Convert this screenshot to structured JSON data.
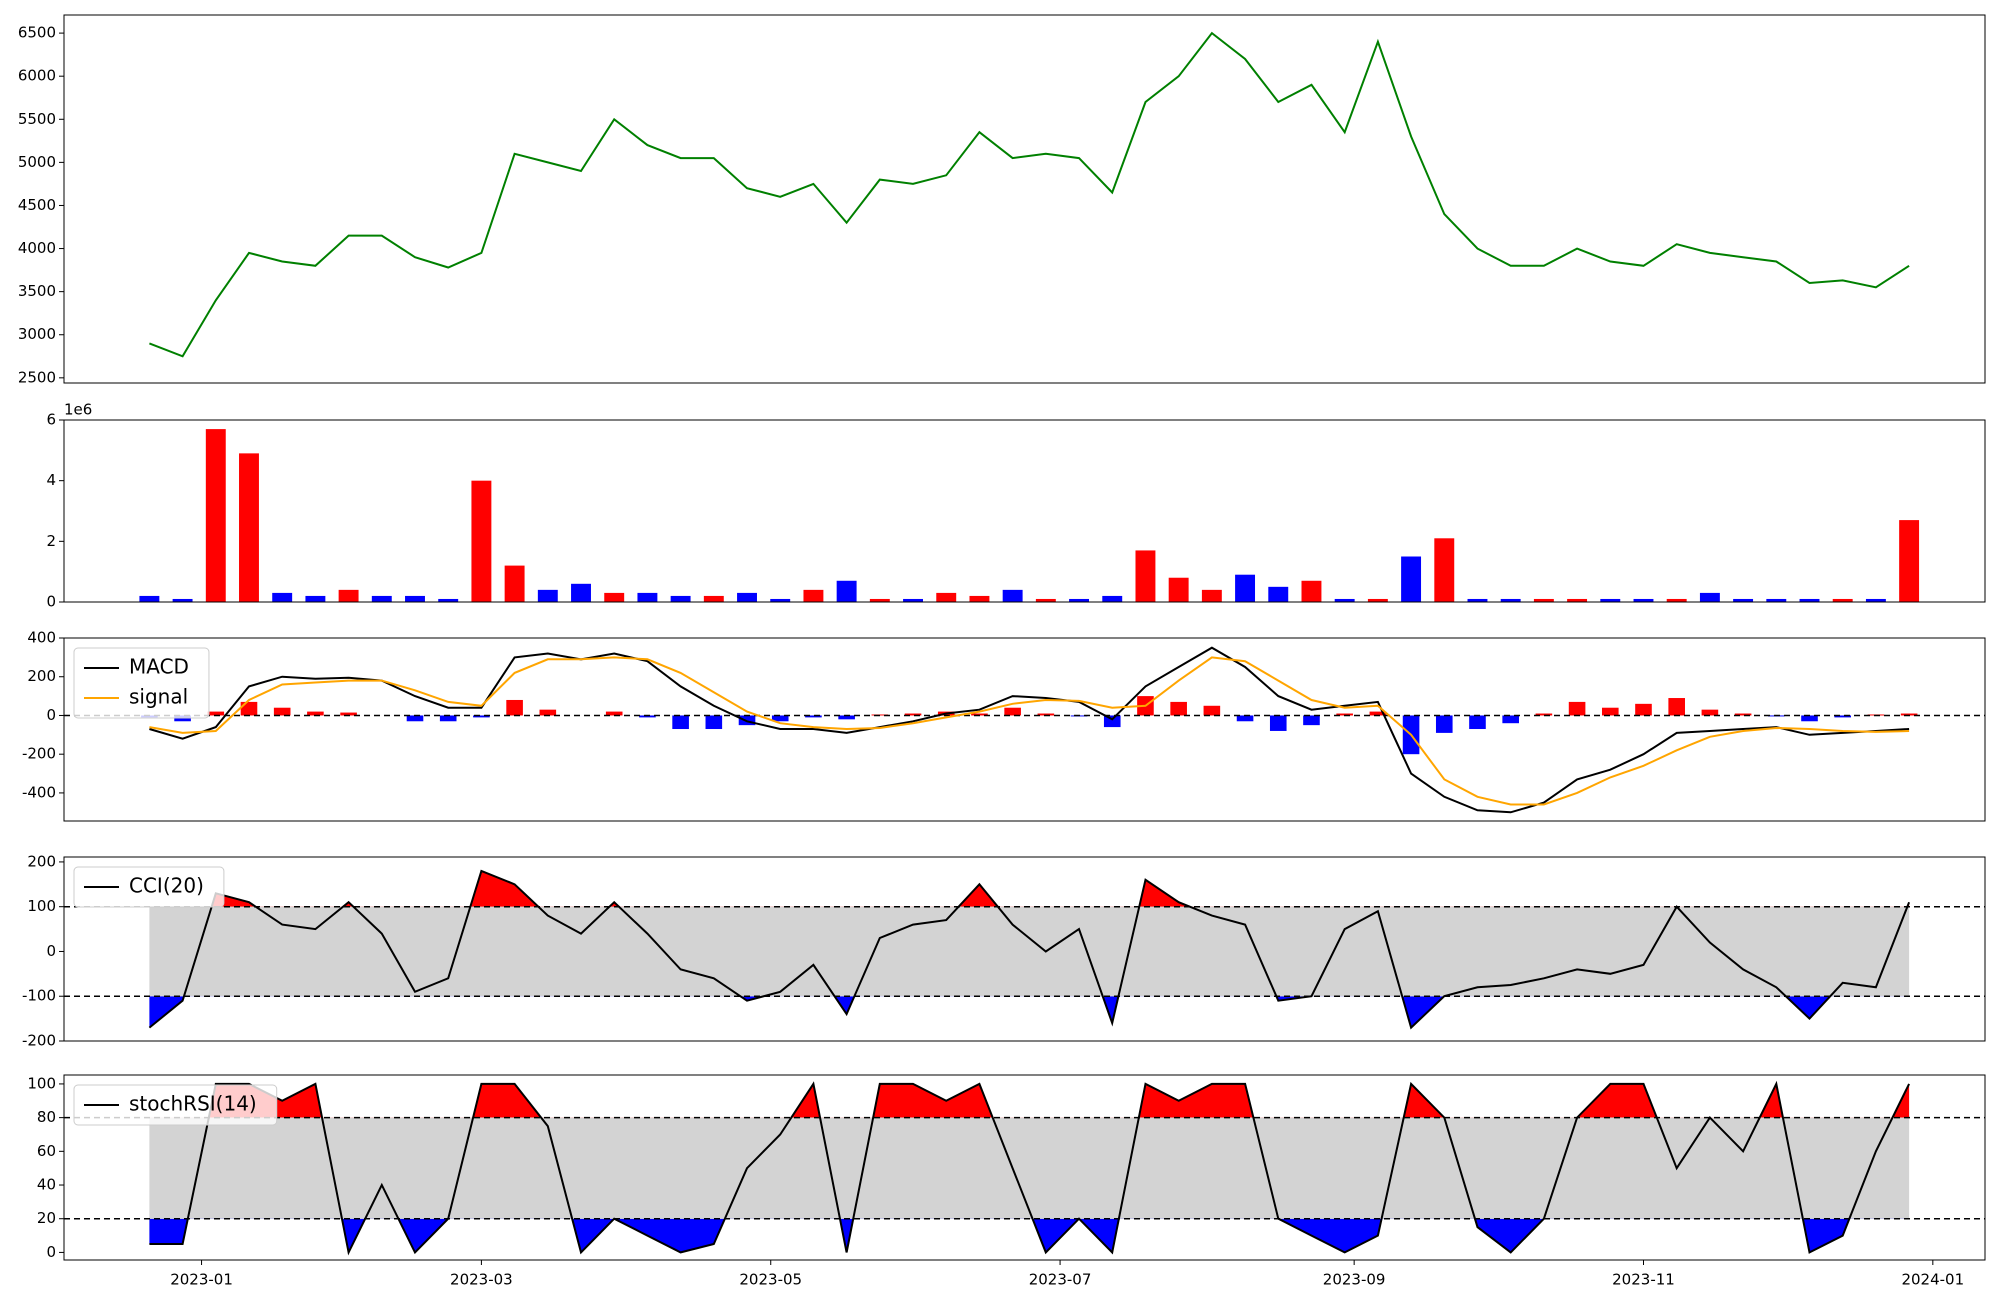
{
  "chart_data": [
    {
      "type": "line",
      "x": [
        "2022-12-21",
        "2022-12-28",
        "2023-01-04",
        "2023-01-11",
        "2023-01-18",
        "2023-01-25",
        "2023-02-01",
        "2023-02-08",
        "2023-02-15",
        "2023-02-22",
        "2023-03-01",
        "2023-03-08",
        "2023-03-15",
        "2023-03-22",
        "2023-03-29",
        "2023-04-05",
        "2023-04-12",
        "2023-04-19",
        "2023-04-26",
        "2023-05-03",
        "2023-05-10",
        "2023-05-17",
        "2023-05-24",
        "2023-05-31",
        "2023-06-07",
        "2023-06-14",
        "2023-06-21",
        "2023-06-28",
        "2023-07-05",
        "2023-07-12",
        "2023-07-19",
        "2023-07-26",
        "2023-08-02",
        "2023-08-09",
        "2023-08-16",
        "2023-08-23",
        "2023-08-30",
        "2023-09-06",
        "2023-09-13",
        "2023-09-20",
        "2023-09-27",
        "2023-10-04",
        "2023-10-11",
        "2023-10-18",
        "2023-10-25",
        "2023-11-01",
        "2023-11-08",
        "2023-11-15",
        "2023-11-22",
        "2023-11-29",
        "2023-12-06",
        "2023-12-13",
        "2023-12-20",
        "2023-12-27"
      ],
      "series": [
        {
          "color": "green",
          "values": [
            2900,
            2750,
            3400,
            3950,
            3850,
            3800,
            4150,
            4150,
            3900,
            3780,
            3950,
            5100,
            5000,
            4900,
            5500,
            5200,
            5050,
            5050,
            4700,
            4600,
            4750,
            4300,
            4800,
            4750,
            4850,
            5350,
            5050,
            5100,
            5050,
            4650,
            5700,
            6000,
            6500,
            6200,
            5700,
            5900,
            5350,
            6400,
            5300,
            4400,
            4000,
            3800,
            3800,
            4000,
            3850,
            3800,
            4050,
            3950,
            3900,
            3850,
            3600,
            3630,
            3550,
            3800
          ]
        }
      ],
      "xlim": [
        "2022-12-03",
        "2024-01-12"
      ],
      "ylim": [
        2440,
        6710
      ],
      "yticks": [
        2500,
        3000,
        3500,
        4000,
        4500,
        5000,
        5500,
        6000,
        6500
      ]
    },
    {
      "type": "bar",
      "x": [
        "2022-12-21",
        "2022-12-28",
        "2023-01-04",
        "2023-01-11",
        "2023-01-18",
        "2023-01-25",
        "2023-02-01",
        "2023-02-08",
        "2023-02-15",
        "2023-02-22",
        "2023-03-01",
        "2023-03-08",
        "2023-03-15",
        "2023-03-22",
        "2023-03-29",
        "2023-04-05",
        "2023-04-12",
        "2023-04-19",
        "2023-04-26",
        "2023-05-03",
        "2023-05-10",
        "2023-05-17",
        "2023-05-24",
        "2023-05-31",
        "2023-06-07",
        "2023-06-14",
        "2023-06-21",
        "2023-06-28",
        "2023-07-05",
        "2023-07-12",
        "2023-07-19",
        "2023-07-26",
        "2023-08-02",
        "2023-08-09",
        "2023-08-16",
        "2023-08-23",
        "2023-08-30",
        "2023-09-06",
        "2023-09-13",
        "2023-09-20",
        "2023-09-27",
        "2023-10-04",
        "2023-10-11",
        "2023-10-18",
        "2023-10-25",
        "2023-11-01",
        "2023-11-08",
        "2023-11-15",
        "2023-11-22",
        "2023-11-29",
        "2023-12-06",
        "2023-12-13",
        "2023-12-20",
        "2023-12-27"
      ],
      "values": [
        0.2,
        0.1,
        5.7,
        4.9,
        0.3,
        0.2,
        0.4,
        0.2,
        0.2,
        0.1,
        4.0,
        1.2,
        0.4,
        0.6,
        0.3,
        0.3,
        0.2,
        0.2,
        0.3,
        0.1,
        0.4,
        0.7,
        0.1,
        0.1,
        0.3,
        0.2,
        0.4,
        0.1,
        0.1,
        0.2,
        1.7,
        0.8,
        0.4,
        0.9,
        0.5,
        0.7,
        0.1,
        0.1,
        1.5,
        2.1,
        0.1,
        0.1,
        0.1,
        0.1,
        0.1,
        0.1,
        0.1,
        0.3,
        0.1,
        0.1,
        0.1,
        0.1,
        0.1,
        2.7
      ],
      "colors": [
        "blue",
        "blue",
        "red",
        "red",
        "blue",
        "blue",
        "red",
        "blue",
        "blue",
        "blue",
        "red",
        "red",
        "blue",
        "blue",
        "red",
        "blue",
        "blue",
        "red",
        "blue",
        "blue",
        "red",
        "blue",
        "red",
        "blue",
        "red",
        "red",
        "blue",
        "red",
        "blue",
        "blue",
        "red",
        "red",
        "red",
        "blue",
        "blue",
        "red",
        "blue",
        "red",
        "blue",
        "red",
        "blue",
        "blue",
        "red",
        "red",
        "blue",
        "blue",
        "red",
        "blue",
        "blue",
        "blue",
        "blue",
        "red",
        "blue",
        "red"
      ],
      "xlim": [
        "2022-12-03",
        "2024-01-12"
      ],
      "ylim": [
        0,
        6
      ],
      "yticks": [
        0,
        2,
        4,
        6
      ],
      "y_offset_label": "1e6"
    },
    {
      "type": "macd",
      "x": [
        "2022-12-21",
        "2022-12-28",
        "2023-01-04",
        "2023-01-11",
        "2023-01-18",
        "2023-01-25",
        "2023-02-01",
        "2023-02-08",
        "2023-02-15",
        "2023-02-22",
        "2023-03-01",
        "2023-03-08",
        "2023-03-15",
        "2023-03-22",
        "2023-03-29",
        "2023-04-05",
        "2023-04-12",
        "2023-04-19",
        "2023-04-26",
        "2023-05-03",
        "2023-05-10",
        "2023-05-17",
        "2023-05-24",
        "2023-05-31",
        "2023-06-07",
        "2023-06-14",
        "2023-06-21",
        "2023-06-28",
        "2023-07-05",
        "2023-07-12",
        "2023-07-19",
        "2023-07-26",
        "2023-08-02",
        "2023-08-09",
        "2023-08-16",
        "2023-08-23",
        "2023-08-30",
        "2023-09-06",
        "2023-09-13",
        "2023-09-20",
        "2023-09-27",
        "2023-10-04",
        "2023-10-11",
        "2023-10-18",
        "2023-10-25",
        "2023-11-01",
        "2023-11-08",
        "2023-11-15",
        "2023-11-22",
        "2023-11-29",
        "2023-12-06",
        "2023-12-13",
        "2023-12-20",
        "2023-12-27"
      ],
      "series": [
        {
          "name": "MACD",
          "color": "black",
          "values": [
            -70,
            -120,
            -60,
            150,
            200,
            190,
            195,
            180,
            100,
            40,
            40,
            300,
            320,
            290,
            320,
            280,
            150,
            50,
            -30,
            -70,
            -70,
            -90,
            -60,
            -30,
            10,
            30,
            100,
            90,
            70,
            -20,
            150,
            250,
            350,
            250,
            100,
            30,
            50,
            70,
            -300,
            -420,
            -490,
            -500,
            -450,
            -330,
            -280,
            -200,
            -90,
            -80,
            -70,
            -60,
            -100,
            -90,
            -80,
            -70
          ]
        },
        {
          "name": "signal",
          "color": "orange",
          "values": [
            -60,
            -90,
            -80,
            80,
            160,
            170,
            180,
            180,
            130,
            70,
            50,
            220,
            290,
            290,
            300,
            290,
            220,
            120,
            20,
            -40,
            -60,
            -70,
            -65,
            -40,
            -10,
            20,
            60,
            80,
            75,
            40,
            50,
            180,
            300,
            280,
            180,
            80,
            40,
            50,
            -100,
            -330,
            -420,
            -460,
            -460,
            -400,
            -320,
            -260,
            -180,
            -110,
            -80,
            -65,
            -70,
            -80,
            -85,
            -80
          ]
        }
      ],
      "histogram": [
        -10,
        -30,
        20,
        70,
        40,
        20,
        15,
        0,
        -30,
        -30,
        -10,
        80,
        30,
        0,
        20,
        -10,
        -70,
        -70,
        -50,
        -30,
        -10,
        -20,
        5,
        10,
        20,
        10,
        40,
        10,
        -5,
        -60,
        100,
        70,
        50,
        -30,
        -80,
        -50,
        10,
        20,
        -200,
        -90,
        -70,
        -40,
        10,
        70,
        40,
        60,
        90,
        30,
        10,
        -5,
        -30,
        -10,
        5,
        10
      ],
      "positive_color": "red",
      "negative_color": "blue",
      "hlines": [
        0
      ],
      "xlim": [
        "2022-12-03",
        "2024-01-12"
      ],
      "ylim": [
        -545,
        400
      ],
      "yticks": [
        -400,
        -200,
        0,
        200,
        400
      ],
      "legend": "upper left"
    },
    {
      "type": "oscillator",
      "x": [
        "2022-12-21",
        "2022-12-28",
        "2023-01-04",
        "2023-01-11",
        "2023-01-18",
        "2023-01-25",
        "2023-02-01",
        "2023-02-08",
        "2023-02-15",
        "2023-02-22",
        "2023-03-01",
        "2023-03-08",
        "2023-03-15",
        "2023-03-22",
        "2023-03-29",
        "2023-04-05",
        "2023-04-12",
        "2023-04-19",
        "2023-04-26",
        "2023-05-03",
        "2023-05-10",
        "2023-05-17",
        "2023-05-24",
        "2023-05-31",
        "2023-06-07",
        "2023-06-14",
        "2023-06-21",
        "2023-06-28",
        "2023-07-05",
        "2023-07-12",
        "2023-07-19",
        "2023-07-26",
        "2023-08-02",
        "2023-08-09",
        "2023-08-16",
        "2023-08-23",
        "2023-08-30",
        "2023-09-06",
        "2023-09-13",
        "2023-09-20",
        "2023-09-27",
        "2023-10-04",
        "2023-10-11",
        "2023-10-18",
        "2023-10-25",
        "2023-11-01",
        "2023-11-08",
        "2023-11-15",
        "2023-11-22",
        "2023-11-29",
        "2023-12-06",
        "2023-12-13",
        "2023-12-20",
        "2023-12-27"
      ],
      "series": [
        {
          "name": "CCI(20)",
          "color": "black",
          "values": [
            -170,
            -110,
            130,
            110,
            60,
            50,
            110,
            40,
            -90,
            -60,
            180,
            150,
            80,
            40,
            110,
            40,
            -40,
            -60,
            -110,
            -90,
            -30,
            -140,
            30,
            60,
            70,
            150,
            60,
            0,
            50,
            -160,
            160,
            110,
            80,
            60,
            -110,
            -100,
            50,
            90,
            -170,
            -100,
            -80,
            -75,
            -60,
            -40,
            -50,
            -30,
            100,
            20,
            -40,
            -80,
            -150,
            -70,
            -80,
            110
          ]
        }
      ],
      "thresholds": [
        -100,
        100
      ],
      "band_color": "lightgray",
      "above_color": "red",
      "below_color": "blue",
      "xlim": [
        "2022-12-03",
        "2024-01-12"
      ],
      "ylim": [
        -200,
        211
      ],
      "yticks": [
        -200,
        -100,
        0,
        100,
        200
      ],
      "legend": "upper left"
    },
    {
      "type": "oscillator",
      "x": [
        "2022-12-21",
        "2022-12-28",
        "2023-01-04",
        "2023-01-11",
        "2023-01-18",
        "2023-01-25",
        "2023-02-01",
        "2023-02-08",
        "2023-02-15",
        "2023-02-22",
        "2023-03-01",
        "2023-03-08",
        "2023-03-15",
        "2023-03-22",
        "2023-03-29",
        "2023-04-05",
        "2023-04-12",
        "2023-04-19",
        "2023-04-26",
        "2023-05-03",
        "2023-05-10",
        "2023-05-17",
        "2023-05-24",
        "2023-05-31",
        "2023-06-07",
        "2023-06-14",
        "2023-06-21",
        "2023-06-28",
        "2023-07-05",
        "2023-07-12",
        "2023-07-19",
        "2023-07-26",
        "2023-08-02",
        "2023-08-09",
        "2023-08-16",
        "2023-08-23",
        "2023-08-30",
        "2023-09-06",
        "2023-09-13",
        "2023-09-20",
        "2023-09-27",
        "2023-10-04",
        "2023-10-11",
        "2023-10-18",
        "2023-10-25",
        "2023-11-01",
        "2023-11-08",
        "2023-11-15",
        "2023-11-22",
        "2023-11-29",
        "2023-12-06",
        "2023-12-13",
        "2023-12-20",
        "2023-12-27"
      ],
      "series": [
        {
          "name": "stochRSI(14)",
          "color": "black",
          "values": [
            5,
            5,
            100,
            100,
            90,
            100,
            0,
            40,
            0,
            20,
            100,
            100,
            75,
            0,
            20,
            10,
            0,
            5,
            50,
            70,
            100,
            0,
            100,
            100,
            90,
            100,
            50,
            0,
            20,
            0,
            100,
            90,
            100,
            100,
            20,
            10,
            0,
            10,
            100,
            80,
            15,
            0,
            20,
            80,
            100,
            100,
            50,
            80,
            60,
            100,
            0,
            10,
            60,
            100
          ]
        }
      ],
      "thresholds": [
        20,
        80
      ],
      "band_color": "lightgray",
      "above_color": "red",
      "below_color": "blue",
      "xlim": [
        "2022-12-03",
        "2024-01-12"
      ],
      "ylim": [
        -4.5,
        105.3
      ],
      "yticks": [
        0,
        20,
        40,
        60,
        80,
        100
      ],
      "legend": "upper left",
      "xticks": [
        {
          "value": "2023-01-01",
          "label": "2023-01"
        },
        {
          "value": "2023-03-01",
          "label": "2023-03"
        },
        {
          "value": "2023-05-01",
          "label": "2023-05"
        },
        {
          "value": "2023-07-01",
          "label": "2023-07"
        },
        {
          "value": "2023-09-01",
          "label": "2023-09"
        },
        {
          "value": "2023-11-01",
          "label": "2023-11"
        },
        {
          "value": "2024-01-01",
          "label": "2024-01"
        }
      ]
    }
  ]
}
